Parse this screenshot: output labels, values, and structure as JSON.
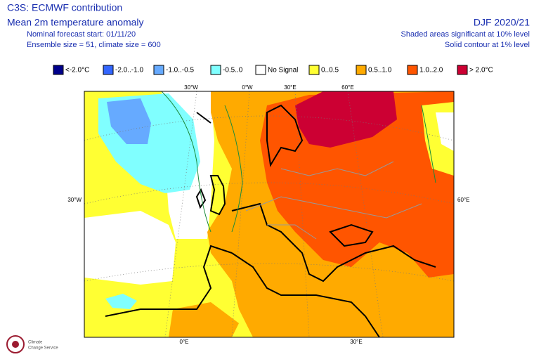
{
  "header": {
    "product": "C3S: ECMWF contribution",
    "variable": "Mean 2m temperature anomaly",
    "forecast_start": "Nominal forecast start: 01/11/20",
    "ensemble": "Ensemble size = 51, climate size = 600",
    "season": "DJF 2020/21",
    "shaded_note": "Shaded areas significant at 10% level",
    "contour_note": "Solid contour at 1% level"
  },
  "legend": [
    {
      "label": "<-2.0°C",
      "color": "#00008b"
    },
    {
      "label": "-2.0..-1.0",
      "color": "#3366ff"
    },
    {
      "label": "-1.0..-0.5",
      "color": "#66aaff"
    },
    {
      "label": "-0.5..0",
      "color": "#80ffff"
    },
    {
      "label": "No Signal",
      "color": "#ffffff"
    },
    {
      "label": "0..0.5",
      "color": "#ffff33"
    },
    {
      "label": "0.5..1.0",
      "color": "#ffaa00"
    },
    {
      "label": "1.0..2.0",
      "color": "#ff5500"
    },
    {
      "label": "> 2.0°C",
      "color": "#cc0033"
    }
  ],
  "map": {
    "labels": {
      "top": [
        "30°W",
        "0°W",
        "30°E",
        "60°E"
      ],
      "left": [
        "30°W"
      ],
      "right": [
        "60°E"
      ],
      "bottom": [
        "0°E",
        "30°E"
      ]
    }
  },
  "logo": {
    "line1": "Climate",
    "line2": "Change Service"
  }
}
